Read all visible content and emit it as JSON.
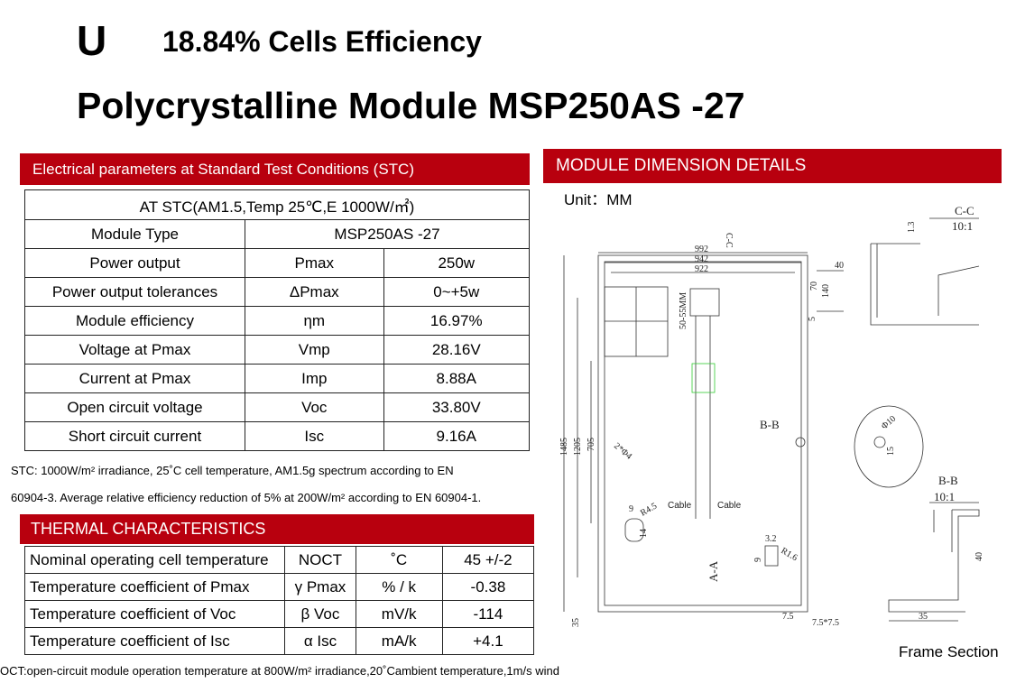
{
  "header": {
    "logo": "U",
    "subtitle": "18.84% Cells Efficiency",
    "title": "Polycrystalline Module MSP250AS -27"
  },
  "electrical": {
    "heading": "Electrical parameters at Standard Test Conditions (STC)",
    "condition": "AT STC(AM1.5,Temp 25℃,E 1000W/㎡)",
    "module_type": [
      "Module Type",
      "MSP250AS -27"
    ],
    "rows": [
      [
        "Power output",
        "Pmax",
        "250w"
      ],
      [
        "Power output tolerances",
        "ΔPmax",
        "0~+5w"
      ],
      [
        "Module efficiency",
        "ηm",
        "16.97%"
      ],
      [
        "Voltage at Pmax",
        "Vmp",
        "28.16V"
      ],
      [
        "Current at Pmax",
        "Imp",
        "8.88A"
      ],
      [
        "Open circuit voltage",
        "Voc",
        "33.80V"
      ],
      [
        "Short circuit current",
        "Isc",
        "9.16A"
      ]
    ],
    "notes": [
      "STC: 1000W/m² irradiance, 25˚C cell temperature, AM1.5g spectrum according to EN",
      "60904-3. Average relative efficiency reduction of 5% at 200W/m² according to EN 60904-1."
    ]
  },
  "thermal": {
    "heading": "THERMAL CHARACTERISTICS",
    "rows": [
      [
        "Nominal operating cell temperature",
        "NOCT",
        "˚C",
        "45 +/-2"
      ],
      [
        "Temperature coefficient of Pmax",
        "γ Pmax",
        "% / k",
        "-0.38"
      ],
      [
        "Temperature coefficient of Voc",
        "β Voc",
        "mV/k",
        "-114"
      ],
      [
        "Temperature coefficient of Isc",
        "α Isc",
        "mA/k",
        "+4.1"
      ]
    ],
    "footnote": "OCT:open-circuit module operation temperature at 800W/m² irradiance,20˚Cambient temperature,1m/s wind"
  },
  "dimension": {
    "heading": "MODULE DIMENSION DETAILS",
    "unit": "Unit：MM",
    "labels": [
      "C-C",
      "10:1",
      "992",
      "942",
      "922",
      "40",
      "70",
      "140",
      "5",
      "50-55MM",
      "1485",
      "1205",
      "705",
      "2*Φ4",
      "B-B",
      "Cable",
      "Cable",
      "9",
      "R4.5",
      "14",
      "3.2",
      "R1.6",
      "9",
      "A-A",
      "7.5",
      "7.5*7.5",
      "35",
      "Φ10",
      "15",
      "B-B",
      "10:1",
      "40",
      "35",
      "1.3",
      "C-C"
    ],
    "caption": "Frame Section"
  }
}
